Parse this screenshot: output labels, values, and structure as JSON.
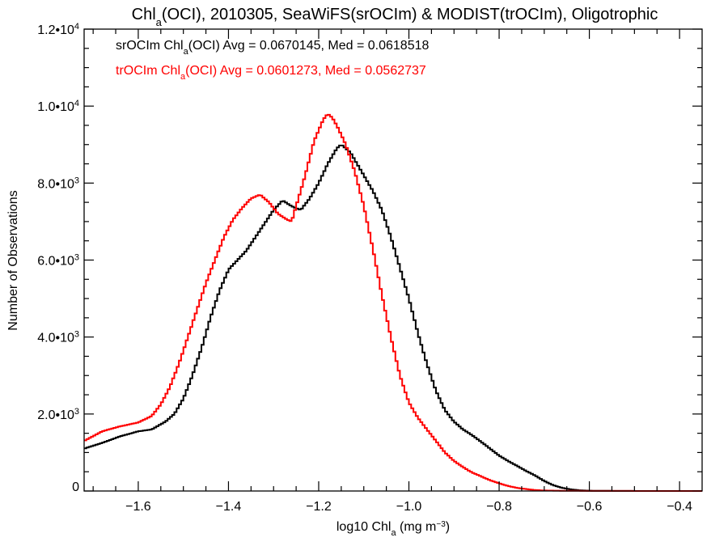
{
  "chart_data": {
    "type": "line",
    "title": {
      "pre": "Chl",
      "sub": "a",
      "post": "(OCI), 2010305, SeaWiFS(srOCIm) & MODIST(trOCIm), Oligotrophic"
    },
    "xlabel": {
      "pre": "log10 Chl",
      "sub": "a",
      "post": " (mg m",
      "sup": "−3",
      "end": ")"
    },
    "ylabel": "Number of Observations",
    "xlim": [
      -1.72,
      -0.35
    ],
    "ylim": [
      0,
      12000
    ],
    "x_ticks": [
      {
        "value": -1.6,
        "label": "−1.6"
      },
      {
        "value": -1.4,
        "label": "−1.4"
      },
      {
        "value": -1.2,
        "label": "−1.2"
      },
      {
        "value": -1.0,
        "label": "−1.0"
      },
      {
        "value": -0.8,
        "label": "−0.8"
      },
      {
        "value": -0.6,
        "label": "−0.6"
      },
      {
        "value": -0.4,
        "label": "−0.4"
      }
    ],
    "y_ticks": [
      {
        "value": 0,
        "mant": "0",
        "exp": ""
      },
      {
        "value": 2000,
        "mant": "2.0•10",
        "exp": "3"
      },
      {
        "value": 4000,
        "mant": "4.0•10",
        "exp": "3"
      },
      {
        "value": 6000,
        "mant": "6.0•10",
        "exp": "3"
      },
      {
        "value": 8000,
        "mant": "8.0•10",
        "exp": "3"
      },
      {
        "value": 10000,
        "mant": "1.0•10",
        "exp": "4"
      },
      {
        "value": 12000,
        "mant": "1.2•10",
        "exp": "4"
      }
    ],
    "legend": {
      "placement": "top-left",
      "entries": [
        {
          "pre": "srOCIm Chl",
          "sub": "a",
          "post": "(OCI) Avg = 0.0670145, Med = 0.0618518",
          "color": "#000000"
        },
        {
          "pre": "trOCIm Chl",
          "sub": "a",
          "post": "(OCI) Avg = 0.0601273, Med = 0.0562737",
          "color": "#ff0000"
        }
      ]
    },
    "series": [
      {
        "color": "#000000",
        "points": [
          [
            -1.72,
            1100
          ],
          [
            -1.68,
            1250
          ],
          [
            -1.64,
            1420
          ],
          [
            -1.6,
            1550
          ],
          [
            -1.57,
            1600
          ],
          [
            -1.54,
            1800
          ],
          [
            -1.52,
            2000
          ],
          [
            -1.5,
            2400
          ],
          [
            -1.48,
            3000
          ],
          [
            -1.46,
            3700
          ],
          [
            -1.44,
            4500
          ],
          [
            -1.42,
            5200
          ],
          [
            -1.4,
            5750
          ],
          [
            -1.38,
            6000
          ],
          [
            -1.36,
            6250
          ],
          [
            -1.34,
            6600
          ],
          [
            -1.32,
            6950
          ],
          [
            -1.3,
            7300
          ],
          [
            -1.28,
            7550
          ],
          [
            -1.26,
            7400
          ],
          [
            -1.24,
            7300
          ],
          [
            -1.22,
            7600
          ],
          [
            -1.2,
            8000
          ],
          [
            -1.18,
            8500
          ],
          [
            -1.16,
            8900
          ],
          [
            -1.15,
            9000
          ],
          [
            -1.13,
            8800
          ],
          [
            -1.12,
            8600
          ],
          [
            -1.1,
            8200
          ],
          [
            -1.08,
            7800
          ],
          [
            -1.06,
            7300
          ],
          [
            -1.04,
            6600
          ],
          [
            -1.02,
            5800
          ],
          [
            -1.0,
            5000
          ],
          [
            -0.98,
            4100
          ],
          [
            -0.96,
            3300
          ],
          [
            -0.94,
            2600
          ],
          [
            -0.92,
            2100
          ],
          [
            -0.9,
            1800
          ],
          [
            -0.88,
            1600
          ],
          [
            -0.86,
            1450
          ],
          [
            -0.84,
            1280
          ],
          [
            -0.82,
            1100
          ],
          [
            -0.8,
            920
          ],
          [
            -0.78,
            780
          ],
          [
            -0.76,
            650
          ],
          [
            -0.74,
            520
          ],
          [
            -0.72,
            400
          ],
          [
            -0.7,
            260
          ],
          [
            -0.68,
            150
          ],
          [
            -0.66,
            80
          ],
          [
            -0.64,
            40
          ],
          [
            -0.62,
            15
          ],
          [
            -0.6,
            8
          ],
          [
            -0.55,
            3
          ],
          [
            -0.5,
            1
          ],
          [
            -0.35,
            0
          ]
        ]
      },
      {
        "color": "#ff0000",
        "points": [
          [
            -1.72,
            1300
          ],
          [
            -1.68,
            1550
          ],
          [
            -1.64,
            1680
          ],
          [
            -1.6,
            1780
          ],
          [
            -1.57,
            1950
          ],
          [
            -1.55,
            2250
          ],
          [
            -1.53,
            2700
          ],
          [
            -1.51,
            3300
          ],
          [
            -1.49,
            4000
          ],
          [
            -1.47,
            4700
          ],
          [
            -1.45,
            5400
          ],
          [
            -1.43,
            6000
          ],
          [
            -1.41,
            6600
          ],
          [
            -1.39,
            7050
          ],
          [
            -1.37,
            7350
          ],
          [
            -1.35,
            7600
          ],
          [
            -1.33,
            7700
          ],
          [
            -1.31,
            7500
          ],
          [
            -1.29,
            7200
          ],
          [
            -1.27,
            7050
          ],
          [
            -1.26,
            7000
          ],
          [
            -1.25,
            7400
          ],
          [
            -1.23,
            8200
          ],
          [
            -1.21,
            9100
          ],
          [
            -1.19,
            9650
          ],
          [
            -1.18,
            9800
          ],
          [
            -1.17,
            9700
          ],
          [
            -1.16,
            9500
          ],
          [
            -1.14,
            9000
          ],
          [
            -1.12,
            8300
          ],
          [
            -1.1,
            7400
          ],
          [
            -1.08,
            6300
          ],
          [
            -1.06,
            5100
          ],
          [
            -1.04,
            4000
          ],
          [
            -1.02,
            3000
          ],
          [
            -1.0,
            2300
          ],
          [
            -0.98,
            1900
          ],
          [
            -0.96,
            1600
          ],
          [
            -0.94,
            1300
          ],
          [
            -0.92,
            1000
          ],
          [
            -0.9,
            780
          ],
          [
            -0.88,
            620
          ],
          [
            -0.86,
            480
          ],
          [
            -0.84,
            380
          ],
          [
            -0.82,
            280
          ],
          [
            -0.8,
            200
          ],
          [
            -0.78,
            130
          ],
          [
            -0.76,
            80
          ],
          [
            -0.74,
            50
          ],
          [
            -0.72,
            25
          ],
          [
            -0.7,
            12
          ],
          [
            -0.65,
            5
          ],
          [
            -0.6,
            2
          ],
          [
            -0.5,
            1
          ],
          [
            -0.35,
            0
          ]
        ]
      }
    ]
  }
}
